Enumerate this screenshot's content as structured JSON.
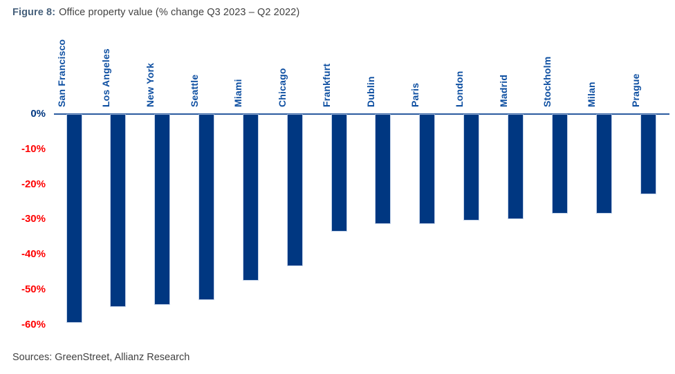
{
  "title": {
    "prefix": "Figure 8:",
    "text": "Office property value (% change Q3 2023 – Q2 2022)"
  },
  "source": "Sources: GreenStreet, Allianz Research",
  "colors": {
    "bar": "#003781",
    "axis_line": "#2a5a9f",
    "city_label": "#0e4fa1",
    "zero_tick_label": "#003781",
    "negative_tick_label": "#fe0000",
    "title_prefix": "#46607b",
    "body_text": "#414141"
  },
  "chart_data": {
    "type": "bar",
    "title": "Office property value (% change Q3 2023 – Q2 2022)",
    "categories": [
      "San Francisco",
      "Los Angeles",
      "New York",
      "Seattle",
      "Miami",
      "Chicago",
      "Frankfurt",
      "Dublin",
      "Paris",
      "London",
      "Madrid",
      "Stockholm",
      "Milan",
      "Prague"
    ],
    "values": [
      -59,
      -54.5,
      -54,
      -52.5,
      -47,
      -43,
      -33,
      -31,
      -31,
      -30,
      -29.5,
      -28,
      -28,
      -22.5
    ],
    "unit": "%",
    "xlabel": "",
    "ylabel": "",
    "ylim": [
      -60,
      0
    ],
    "yticks": [
      "0%",
      "-10%",
      "-20%",
      "-30%",
      "-40%",
      "-50%",
      "-60%"
    ],
    "grid": false,
    "legend": false,
    "bar_direction": "down",
    "category_label_rotation": 90
  }
}
